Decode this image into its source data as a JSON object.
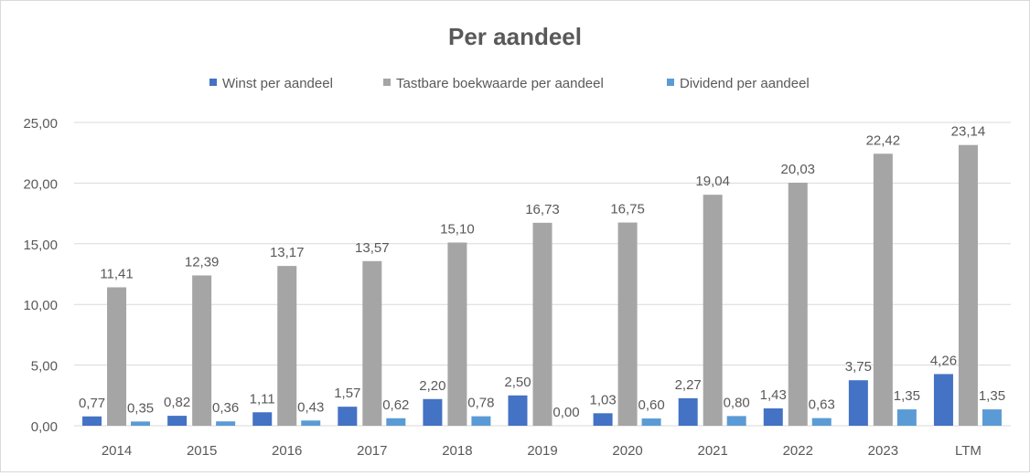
{
  "chart_data": {
    "type": "bar",
    "title": "Per aandeel",
    "categories": [
      "2014",
      "2015",
      "2016",
      "2017",
      "2018",
      "2019",
      "2020",
      "2021",
      "2022",
      "2023",
      "LTM"
    ],
    "series": [
      {
        "name": "Winst per aandeel",
        "color": "#4472c4",
        "values": [
          0.77,
          0.82,
          1.11,
          1.57,
          2.2,
          2.5,
          1.03,
          2.27,
          1.43,
          3.75,
          4.26
        ],
        "labels": [
          "0,77",
          "0,82",
          "1,11",
          "1,57",
          "2,20",
          "2,50",
          "1,03",
          "2,27",
          "1,43",
          "3,75",
          "4,26"
        ]
      },
      {
        "name": "Tastbare boekwaarde per aandeel",
        "color": "#a5a5a5",
        "values": [
          11.41,
          12.39,
          13.17,
          13.57,
          15.1,
          16.73,
          16.75,
          19.04,
          20.03,
          22.42,
          23.14
        ],
        "labels": [
          "11,41",
          "12,39",
          "13,17",
          "13,57",
          "15,10",
          "16,73",
          "16,75",
          "19,04",
          "20,03",
          "22,42",
          "23,14"
        ]
      },
      {
        "name": "Dividend per aandeel",
        "color": "#5b9bd5",
        "values": [
          0.35,
          0.36,
          0.43,
          0.62,
          0.78,
          0.0,
          0.6,
          0.8,
          0.63,
          1.35,
          1.35
        ],
        "labels": [
          "0,35",
          "0,36",
          "0,43",
          "0,62",
          "0,78",
          "0,00",
          "0,60",
          "0,80",
          "0,63",
          "1,35",
          "1,35"
        ]
      }
    ],
    "yticks": [
      "0,00",
      "5,00",
      "10,00",
      "15,00",
      "20,00",
      "25,00"
    ],
    "ylim": [
      0,
      25
    ],
    "grid": true,
    "legend": "top"
  }
}
